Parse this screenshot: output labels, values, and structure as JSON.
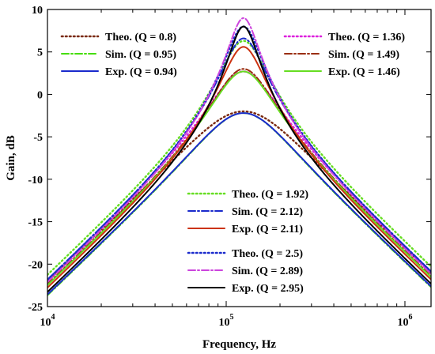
{
  "chart_data": {
    "type": "line",
    "xlabel": "Frequency, Hz",
    "ylabel": "Gain, dB",
    "x_scale": "log",
    "xlim": [
      10000,
      1400000
    ],
    "ylim": [
      -25,
      10
    ],
    "x_ticks": [
      {
        "value": 10000,
        "base": "10",
        "exp": "4"
      },
      {
        "value": 100000,
        "base": "10",
        "exp": "5"
      },
      {
        "value": 1000000,
        "base": "10",
        "exp": "6"
      }
    ],
    "y_ticks": [
      {
        "value": 10,
        "label": "10"
      },
      {
        "value": 5,
        "label": "5"
      },
      {
        "value": 0,
        "label": "0"
      },
      {
        "value": -5,
        "label": "-5"
      },
      {
        "value": -10,
        "label": "-10"
      },
      {
        "value": -15,
        "label": "-15"
      },
      {
        "value": -20,
        "label": "-20"
      },
      {
        "value": -25,
        "label": "-25"
      }
    ],
    "grid": false,
    "center_frequency_hz": 125000,
    "series": [
      {
        "name": "Theo. (Q = 0.8)",
        "style": "dotted",
        "color": "#7a2a10",
        "peak_db": -2.0,
        "group": 1
      },
      {
        "name": "Sim. (Q = 0.95)",
        "style": "dashdot",
        "color": "#44dd00",
        "peak_db": -2.2,
        "group": 1
      },
      {
        "name": "Exp. (Q = 0.94)",
        "style": "solid",
        "color": "#1a2acc",
        "peak_db": -2.2,
        "group": 1
      },
      {
        "name": "Theo. (Q = 1.36)",
        "style": "dotted",
        "color": "#dd22dd",
        "peak_db": 2.7,
        "group": 2
      },
      {
        "name": "Sim. (Q = 1.49)",
        "style": "dashdot",
        "color": "#9a2e10",
        "peak_db": 3.0,
        "group": 2
      },
      {
        "name": "Exp. (Q = 1.46)",
        "style": "solid",
        "color": "#66dd22",
        "peak_db": 2.7,
        "group": 2
      },
      {
        "name": "Theo. (Q = 1.92)",
        "style": "dotted",
        "color": "#66dd22",
        "peak_db": 6.3,
        "group": 3
      },
      {
        "name": "Sim. (Q = 2.12)",
        "style": "dashdot",
        "color": "#1a2acc",
        "peak_db": 6.6,
        "group": 3
      },
      {
        "name": "Exp. (Q = 2.11)",
        "style": "solid",
        "color": "#cc3311",
        "peak_db": 5.6,
        "group": 3
      },
      {
        "name": "Theo. (Q = 2.5)",
        "style": "dotted",
        "color": "#1a2acc",
        "peak_db": 8.0,
        "group": 4
      },
      {
        "name": "Sim. (Q = 2.89)",
        "style": "dashdot",
        "color": "#cc44dd",
        "peak_db": 9.0,
        "group": 4
      },
      {
        "name": "Exp. (Q = 2.95)",
        "style": "solid",
        "color": "#000000",
        "peak_db": 8.0,
        "group": 4
      }
    ]
  }
}
